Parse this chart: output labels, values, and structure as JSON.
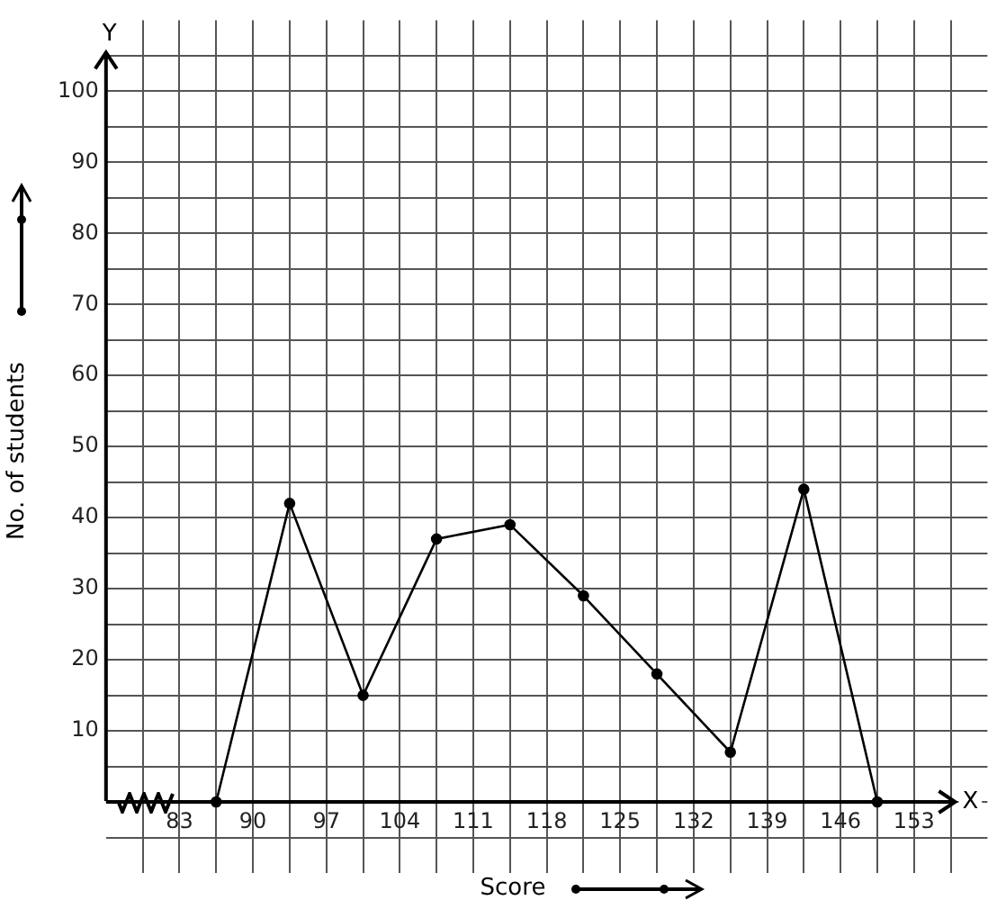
{
  "chart_data": {
    "type": "line",
    "xlabel": "Score",
    "ylabel": "No. of students",
    "x": [
      86.5,
      93.5,
      100.5,
      107.5,
      114.5,
      121.5,
      128.5,
      135.5,
      142.5,
      149.5
    ],
    "series": [
      {
        "color": "#000000",
        "values": [
          0,
          42,
          15,
          37,
          39,
          29,
          18,
          7,
          44,
          0
        ]
      }
    ],
    "xlim": [
      76,
      160
    ],
    "ylim": [
      -10,
      110
    ],
    "xticks": [
      {
        "value": 79.5,
        "label": null
      },
      83,
      {
        "value": 86.5,
        "label": null
      },
      90,
      {
        "value": 93.5,
        "label": null
      },
      97,
      {
        "value": 100.5,
        "label": null
      },
      104,
      {
        "value": 107.5,
        "label": null
      },
      111,
      {
        "value": 114.5,
        "label": null
      },
      118,
      {
        "value": 121.5,
        "label": null
      },
      125,
      {
        "value": 128.5,
        "label": null
      },
      132,
      {
        "value": 135.5,
        "label": null
      },
      139,
      {
        "value": 142.5,
        "label": null
      },
      146,
      {
        "value": 149.5,
        "label": null
      },
      153,
      {
        "value": 156.5,
        "label": null
      }
    ],
    "yticks": [
      {
        "value": -5,
        "label": null
      },
      {
        "value": 0,
        "label": null
      },
      {
        "value": 5,
        "label": null
      },
      10,
      {
        "value": 15,
        "label": null
      },
      20,
      {
        "value": 25,
        "label": null
      },
      30,
      {
        "value": 35,
        "label": null
      },
      40,
      {
        "value": 45,
        "label": null
      },
      50,
      {
        "value": 55,
        "label": null
      },
      60,
      {
        "value": 65,
        "label": null
      },
      70,
      {
        "value": 75,
        "label": null
      },
      80,
      {
        "value": 85,
        "label": null
      },
      90,
      {
        "value": 95,
        "label": null
      },
      100,
      {
        "value": 105,
        "label": null
      }
    ],
    "annotations": [
      "X",
      "Y"
    ],
    "grid": true,
    "legend": false,
    "marker": "circle",
    "line_style": "solid"
  }
}
